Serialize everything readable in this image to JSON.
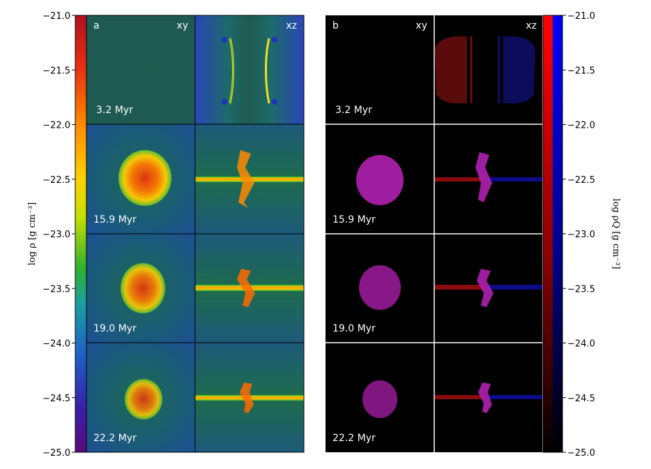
{
  "figure": {
    "panel_a": {
      "letter": "a",
      "col_labels": [
        "xy",
        "xz"
      ],
      "times": [
        "3.2 Myr",
        "15.9 Myr",
        "19.0 Myr",
        "22.2 Myr"
      ]
    },
    "panel_b": {
      "letter": "b",
      "col_labels": [
        "xy",
        "xz"
      ],
      "times": [
        "3.2 Myr",
        "15.9 Myr",
        "19.0 Myr",
        "22.2 Myr"
      ]
    }
  },
  "colorbar_left": {
    "label": "log ρ [g cm⁻³]",
    "ticks": [
      "−21.0",
      "−21.5",
      "−22.0",
      "−22.5",
      "−23.0",
      "−23.5",
      "−24.0",
      "−24.5",
      "−25.0"
    ],
    "range": [
      -25.0,
      -21.0
    ],
    "colors": [
      "#5a0a7a",
      "#3a1fa8",
      "#1f5fc8",
      "#1aa0a0",
      "#30b030",
      "#c8e000",
      "#ffd000",
      "#ff8a00",
      "#e83010",
      "#b01020"
    ]
  },
  "colorbar_right": {
    "label": "log ρQ [g cm⁻³]",
    "ticks": [
      "−21.0",
      "−21.5",
      "−22.0",
      "−22.5",
      "−23.0",
      "−23.5",
      "−24.0",
      "−24.5",
      "−25.0"
    ],
    "range": [
      -25.0,
      -21.0
    ],
    "colors": [
      "#ff0000",
      "#0000ff",
      "#000000"
    ]
  }
}
